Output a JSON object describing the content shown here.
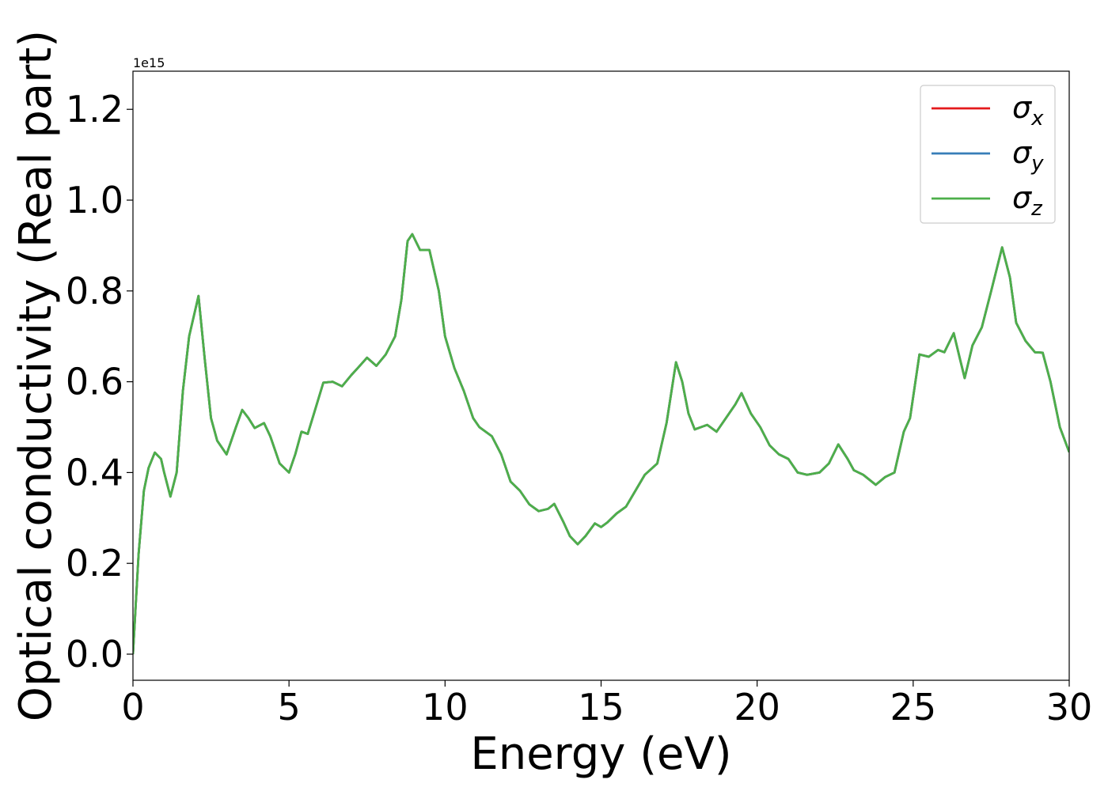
{
  "chart_data": {
    "type": "line",
    "xlabel": "Energy (eV)",
    "ylabel": "Optical conductivity (Real part)",
    "offset_label": "1e15",
    "x": [
      0,
      0.18,
      0.35,
      0.5,
      0.7,
      0.9,
      1.0,
      1.2,
      1.4,
      1.6,
      1.8,
      2.1,
      2.3,
      2.5,
      2.7,
      3.0,
      3.3,
      3.5,
      3.7,
      3.9,
      4.2,
      4.4,
      4.7,
      5.0,
      5.2,
      5.4,
      5.6,
      5.8,
      6.1,
      6.4,
      6.7,
      7.0,
      7.2,
      7.5,
      7.8,
      8.1,
      8.4,
      8.6,
      8.8,
      8.95,
      9.2,
      9.5,
      9.8,
      10.0,
      10.3,
      10.6,
      10.9,
      11.1,
      11.5,
      11.8,
      12.1,
      12.4,
      12.7,
      13.0,
      13.3,
      13.5,
      13.8,
      14.0,
      14.25,
      14.5,
      14.8,
      15.0,
      15.2,
      15.5,
      15.8,
      16.1,
      16.4,
      16.8,
      17.1,
      17.4,
      17.6,
      17.8,
      18.0,
      18.4,
      18.7,
      19.0,
      19.3,
      19.5,
      19.8,
      20.1,
      20.4,
      20.7,
      21.0,
      21.3,
      21.6,
      22.0,
      22.3,
      22.6,
      22.9,
      23.1,
      23.4,
      23.8,
      24.1,
      24.4,
      24.7,
      24.9,
      25.2,
      25.5,
      25.8,
      26.0,
      26.3,
      26.5,
      26.65,
      26.9,
      27.2,
      27.5,
      27.85,
      28.1,
      28.3,
      28.6,
      28.9,
      29.15,
      29.4,
      29.7,
      30.0
    ],
    "series": [
      {
        "name": "σx",
        "color": "#e41a1c",
        "values": [
          0.0,
          0.22,
          0.36,
          0.41,
          0.444,
          0.43,
          0.4,
          0.347,
          0.4,
          0.58,
          0.7,
          0.789,
          0.65,
          0.52,
          0.47,
          0.44,
          0.5,
          0.538,
          0.52,
          0.498,
          0.509,
          0.48,
          0.42,
          0.4,
          0.44,
          0.49,
          0.485,
          0.53,
          0.598,
          0.6,
          0.59,
          0.615,
          0.63,
          0.653,
          0.635,
          0.66,
          0.7,
          0.78,
          0.91,
          0.925,
          0.89,
          0.89,
          0.8,
          0.7,
          0.63,
          0.58,
          0.52,
          0.5,
          0.48,
          0.44,
          0.38,
          0.36,
          0.33,
          0.315,
          0.32,
          0.331,
          0.29,
          0.26,
          0.242,
          0.26,
          0.288,
          0.28,
          0.29,
          0.31,
          0.325,
          0.36,
          0.395,
          0.42,
          0.51,
          0.643,
          0.6,
          0.53,
          0.495,
          0.505,
          0.49,
          0.52,
          0.55,
          0.575,
          0.53,
          0.5,
          0.46,
          0.44,
          0.43,
          0.4,
          0.395,
          0.4,
          0.42,
          0.462,
          0.43,
          0.405,
          0.395,
          0.373,
          0.39,
          0.4,
          0.49,
          0.52,
          0.66,
          0.655,
          0.67,
          0.665,
          0.707,
          0.65,
          0.608,
          0.68,
          0.72,
          0.8,
          0.896,
          0.83,
          0.73,
          0.69,
          0.665,
          0.664,
          0.6,
          0.5,
          0.445
        ]
      },
      {
        "name": "σy",
        "color": "#377eb8",
        "values": [
          0.0,
          0.22,
          0.36,
          0.41,
          0.444,
          0.43,
          0.4,
          0.347,
          0.4,
          0.58,
          0.7,
          0.789,
          0.65,
          0.52,
          0.47,
          0.44,
          0.5,
          0.538,
          0.52,
          0.498,
          0.509,
          0.48,
          0.42,
          0.4,
          0.44,
          0.49,
          0.485,
          0.53,
          0.598,
          0.6,
          0.59,
          0.615,
          0.63,
          0.653,
          0.635,
          0.66,
          0.7,
          0.78,
          0.91,
          0.925,
          0.89,
          0.89,
          0.8,
          0.7,
          0.63,
          0.58,
          0.52,
          0.5,
          0.48,
          0.44,
          0.38,
          0.36,
          0.33,
          0.315,
          0.32,
          0.331,
          0.29,
          0.26,
          0.242,
          0.26,
          0.288,
          0.28,
          0.29,
          0.31,
          0.325,
          0.36,
          0.395,
          0.42,
          0.51,
          0.643,
          0.6,
          0.53,
          0.495,
          0.505,
          0.49,
          0.52,
          0.55,
          0.575,
          0.53,
          0.5,
          0.46,
          0.44,
          0.43,
          0.4,
          0.395,
          0.4,
          0.42,
          0.462,
          0.43,
          0.405,
          0.395,
          0.373,
          0.39,
          0.4,
          0.49,
          0.52,
          0.66,
          0.655,
          0.67,
          0.665,
          0.707,
          0.65,
          0.608,
          0.68,
          0.72,
          0.8,
          0.896,
          0.83,
          0.73,
          0.69,
          0.665,
          0.664,
          0.6,
          0.5,
          0.445
        ]
      },
      {
        "name": "σz",
        "color": "#4daf4a",
        "values": [
          0.0,
          0.22,
          0.36,
          0.41,
          0.444,
          0.43,
          0.4,
          0.347,
          0.4,
          0.58,
          0.7,
          0.789,
          0.65,
          0.52,
          0.47,
          0.44,
          0.5,
          0.538,
          0.52,
          0.498,
          0.509,
          0.48,
          0.42,
          0.4,
          0.44,
          0.49,
          0.485,
          0.53,
          0.598,
          0.6,
          0.59,
          0.615,
          0.63,
          0.653,
          0.635,
          0.66,
          0.7,
          0.78,
          0.91,
          0.925,
          0.89,
          0.89,
          0.8,
          0.7,
          0.63,
          0.58,
          0.52,
          0.5,
          0.48,
          0.44,
          0.38,
          0.36,
          0.33,
          0.315,
          0.32,
          0.331,
          0.29,
          0.26,
          0.242,
          0.26,
          0.288,
          0.28,
          0.29,
          0.31,
          0.325,
          0.36,
          0.395,
          0.42,
          0.51,
          0.643,
          0.6,
          0.53,
          0.495,
          0.505,
          0.49,
          0.52,
          0.55,
          0.575,
          0.53,
          0.5,
          0.46,
          0.44,
          0.43,
          0.4,
          0.395,
          0.4,
          0.42,
          0.462,
          0.43,
          0.405,
          0.395,
          0.373,
          0.39,
          0.4,
          0.49,
          0.52,
          0.66,
          0.655,
          0.67,
          0.665,
          0.707,
          0.65,
          0.608,
          0.68,
          0.72,
          0.8,
          0.896,
          0.83,
          0.73,
          0.69,
          0.665,
          0.664,
          0.6,
          0.5,
          0.445
        ]
      }
    ],
    "xlim": [
      0,
      30
    ],
    "xticks": [
      0,
      5,
      10,
      15,
      20,
      25,
      30
    ],
    "ylim": [
      -0.0575,
      1.284
    ],
    "yticks": [
      {
        "value": 0,
        "label": "0.0"
      },
      0.2,
      0.4,
      0.6,
      0.8,
      {
        "value": 1,
        "label": "1.0"
      },
      1.2
    ],
    "grid": false,
    "legend": "upper right"
  }
}
